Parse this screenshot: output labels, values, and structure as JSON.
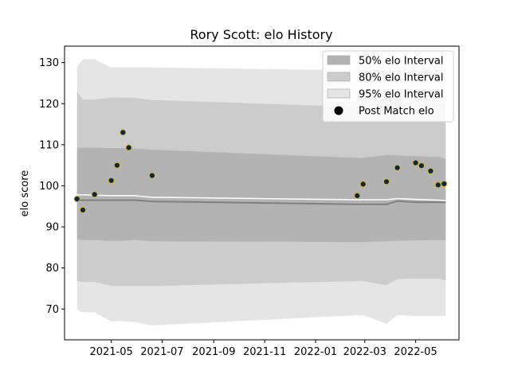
{
  "chart_data": {
    "type": "scatter",
    "title": "Rory Scott: elo History",
    "xlabel": "",
    "ylabel": "elo score",
    "xlim": [
      "2021-03-06",
      "2022-06-22"
    ],
    "ylim": [
      62.5,
      134
    ],
    "x_ticks": [
      "2021-05",
      "2021-07",
      "2021-09",
      "2021-11",
      "2022-01",
      "2022-03",
      "2022-05"
    ],
    "x_tick_dates": [
      "2021-05-01",
      "2021-07-01",
      "2021-09-01",
      "2021-11-01",
      "2022-01-01",
      "2022-03-01",
      "2022-05-01"
    ],
    "y_ticks": [
      70,
      80,
      90,
      100,
      110,
      120,
      130
    ],
    "grid": false,
    "legend_position": "top-right",
    "legend": [
      {
        "label": "50% elo Interval",
        "kind": "band"
      },
      {
        "label": "80% elo Interval",
        "kind": "band"
      },
      {
        "label": "95% elo Interval",
        "kind": "band"
      },
      {
        "label": "Post Match elo",
        "kind": "marker"
      }
    ],
    "band_dates": [
      "2021-03-21",
      "2021-03-28",
      "2021-04-11",
      "2021-05-01",
      "2021-05-15",
      "2021-05-29",
      "2021-06-19",
      "2022-02-20",
      "2022-02-27",
      "2022-03-27",
      "2022-04-09",
      "2022-05-01",
      "2022-05-30",
      "2022-06-06"
    ],
    "median_line": [
      96.5,
      96.5,
      96.5,
      96.5,
      96.5,
      96.5,
      96.2,
      95.5,
      95.5,
      95.5,
      96.3,
      96.0,
      96.0,
      96.0
    ],
    "mean_line": [
      97.8,
      97.8,
      97.7,
      97.6,
      97.6,
      97.6,
      97.2,
      96.6,
      96.6,
      96.6,
      96.9,
      96.7,
      96.5,
      96.4
    ],
    "band_50": {
      "lower": [
        87.0,
        86.8,
        86.8,
        86.6,
        86.6,
        86.8,
        86.5,
        86.3,
        86.3,
        86.5,
        86.6,
        86.7,
        86.8,
        86.7
      ],
      "upper": [
        109.3,
        109.3,
        109.3,
        109.2,
        109.2,
        109.1,
        108.8,
        106.8,
        106.8,
        107.5,
        107.4,
        107.2,
        107.0,
        106.5
      ]
    },
    "band_80": {
      "lower": [
        76.8,
        76.6,
        76.6,
        75.6,
        75.6,
        75.6,
        75.6,
        76.8,
        76.8,
        75.8,
        77.3,
        77.4,
        77.4,
        77.0
      ],
      "upper": [
        123.0,
        121.0,
        121.0,
        121.5,
        121.5,
        121.4,
        120.9,
        119.2,
        119.2,
        121.6,
        120.8,
        120.0,
        120.0,
        120.0
      ]
    },
    "band_95": {
      "lower": [
        69.8,
        69.2,
        69.2,
        67.0,
        67.0,
        66.8,
        66.0,
        68.5,
        68.5,
        66.4,
        68.5,
        68.3,
        68.3,
        68.3
      ],
      "upper": [
        129.0,
        130.8,
        130.8,
        128.8,
        128.8,
        128.8,
        128.8,
        128.1,
        128.1,
        128.0,
        127.9,
        127.9,
        127.9,
        127.9
      ]
    },
    "series": [
      {
        "name": "Post Match elo",
        "x": [
          "2021-03-21",
          "2021-03-28",
          "2021-04-11",
          "2021-05-01",
          "2021-05-08",
          "2021-05-15",
          "2021-05-22",
          "2021-06-19",
          "2022-02-20",
          "2022-02-27",
          "2022-03-27",
          "2022-04-09",
          "2022-05-01",
          "2022-05-08",
          "2022-05-19",
          "2022-05-28",
          "2022-06-04"
        ],
        "y": [
          96.8,
          94.1,
          97.9,
          101.3,
          105.0,
          113.0,
          109.3,
          102.5,
          97.6,
          100.4,
          101.0,
          104.4,
          105.6,
          104.9,
          103.6,
          100.2,
          100.5
        ]
      }
    ],
    "colors": {
      "band_50": "#b3b3b3",
      "band_80": "#cccccc",
      "band_95": "#e5e5e5",
      "median_line": "#808080",
      "mean_line": "#ffffff",
      "marker_fill": "#0d2a3a",
      "marker_edge": "#e0b030"
    }
  }
}
